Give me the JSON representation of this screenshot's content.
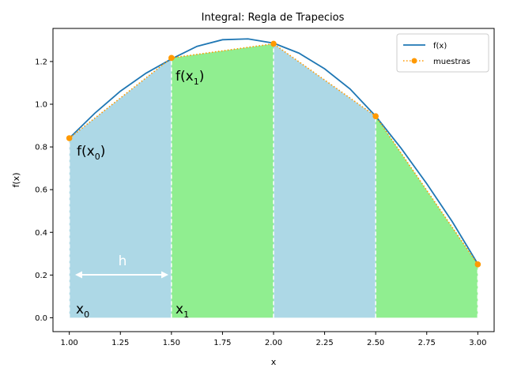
{
  "chart_data": {
    "type": "area",
    "title": "Integral: Regla de Trapecios",
    "xlabel": "x",
    "ylabel": "f(x)",
    "xlim": [
      0.92,
      3.08
    ],
    "ylim": [
      -0.065,
      1.355
    ],
    "xticks": [
      1.0,
      1.25,
      1.5,
      1.75,
      2.0,
      2.25,
      2.5,
      2.75,
      3.0
    ],
    "xtick_labels": [
      "1.00",
      "1.25",
      "1.50",
      "1.75",
      "2.00",
      "2.25",
      "2.50",
      "2.75",
      "3.00"
    ],
    "yticks": [
      0.0,
      0.2,
      0.4,
      0.6,
      0.8,
      1.0,
      1.2
    ],
    "ytick_labels": [
      "0.0",
      "0.2",
      "0.4",
      "0.6",
      "0.8",
      "1.0",
      "1.2"
    ],
    "grid": false,
    "legend_position": "top-right",
    "series": [
      {
        "name": "f(x)",
        "style": "solid",
        "color": "#1f77b4",
        "x": [
          1.0,
          1.125,
          1.25,
          1.375,
          1.5,
          1.625,
          1.75,
          1.875,
          2.0,
          2.125,
          2.25,
          2.375,
          2.5,
          2.625,
          2.75,
          2.875,
          3.0
        ],
        "y": [
          0.841,
          0.958,
          1.061,
          1.145,
          1.212,
          1.271,
          1.302,
          1.306,
          1.286,
          1.239,
          1.166,
          1.071,
          0.944,
          0.793,
          0.628,
          0.45,
          0.252
        ]
      },
      {
        "name": "muestras",
        "style": "dotted-markers",
        "color": "#ff9900",
        "x": [
          1.0,
          1.5,
          2.0,
          2.5,
          3.0
        ],
        "y": [
          0.841,
          1.217,
          1.283,
          0.944,
          0.25
        ]
      }
    ],
    "trapezoid_fills": [
      "#add8e6",
      "#90ee90",
      "#add8e6",
      "#90ee90"
    ],
    "annotations": {
      "f0": {
        "main": "f(x",
        "sub": "0",
        "close": ")"
      },
      "f1": {
        "main": "f(x",
        "sub": "1",
        "close": ")"
      },
      "x0": {
        "main": "x",
        "sub": "0"
      },
      "x1": {
        "main": "x",
        "sub": "1"
      },
      "h": "h"
    }
  }
}
